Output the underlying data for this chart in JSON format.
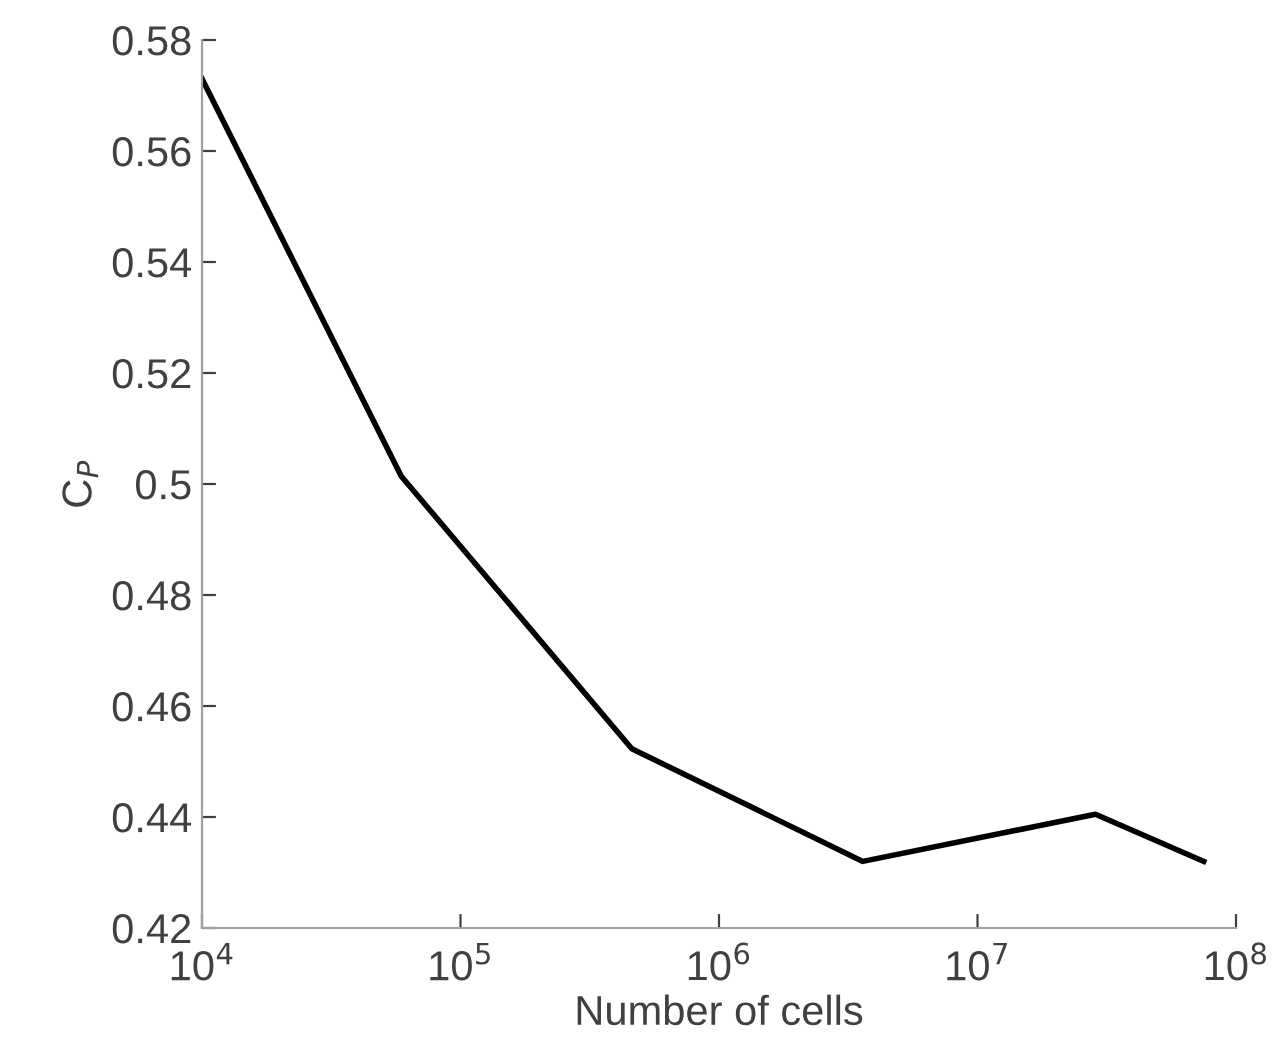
{
  "chart_data": {
    "type": "line",
    "xlabel": "Number of cells",
    "ylabel": "C$_{P}$",
    "log": "x",
    "x": [
      10000,
      59000,
      460000,
      3600000,
      28600000,
      75000000
    ],
    "series": [
      {
        "color": "#000000",
        "values": [
          0.573,
          0.5014,
          0.4523,
          0.432,
          0.4405,
          0.432
        ]
      }
    ],
    "xlim": [
      10000,
      100000000
    ],
    "ylim": [
      0.42,
      0.58
    ],
    "xticks": [
      {
        "value": 10000,
        "label": "10$^{4}$"
      },
      {
        "value": 100000,
        "label": "10$^{5}$"
      },
      {
        "value": 1000000,
        "label": "10$^{6}$"
      },
      {
        "value": 10000000,
        "label": "10$^{7}$"
      },
      {
        "value": 100000000,
        "label": "10$^{8}$"
      }
    ],
    "yticks": [
      0.42,
      0.44,
      0.46,
      0.48,
      0.5,
      0.52,
      0.54,
      0.56,
      0.58
    ],
    "grid": false,
    "marker": "none",
    "line_style": "solid"
  }
}
